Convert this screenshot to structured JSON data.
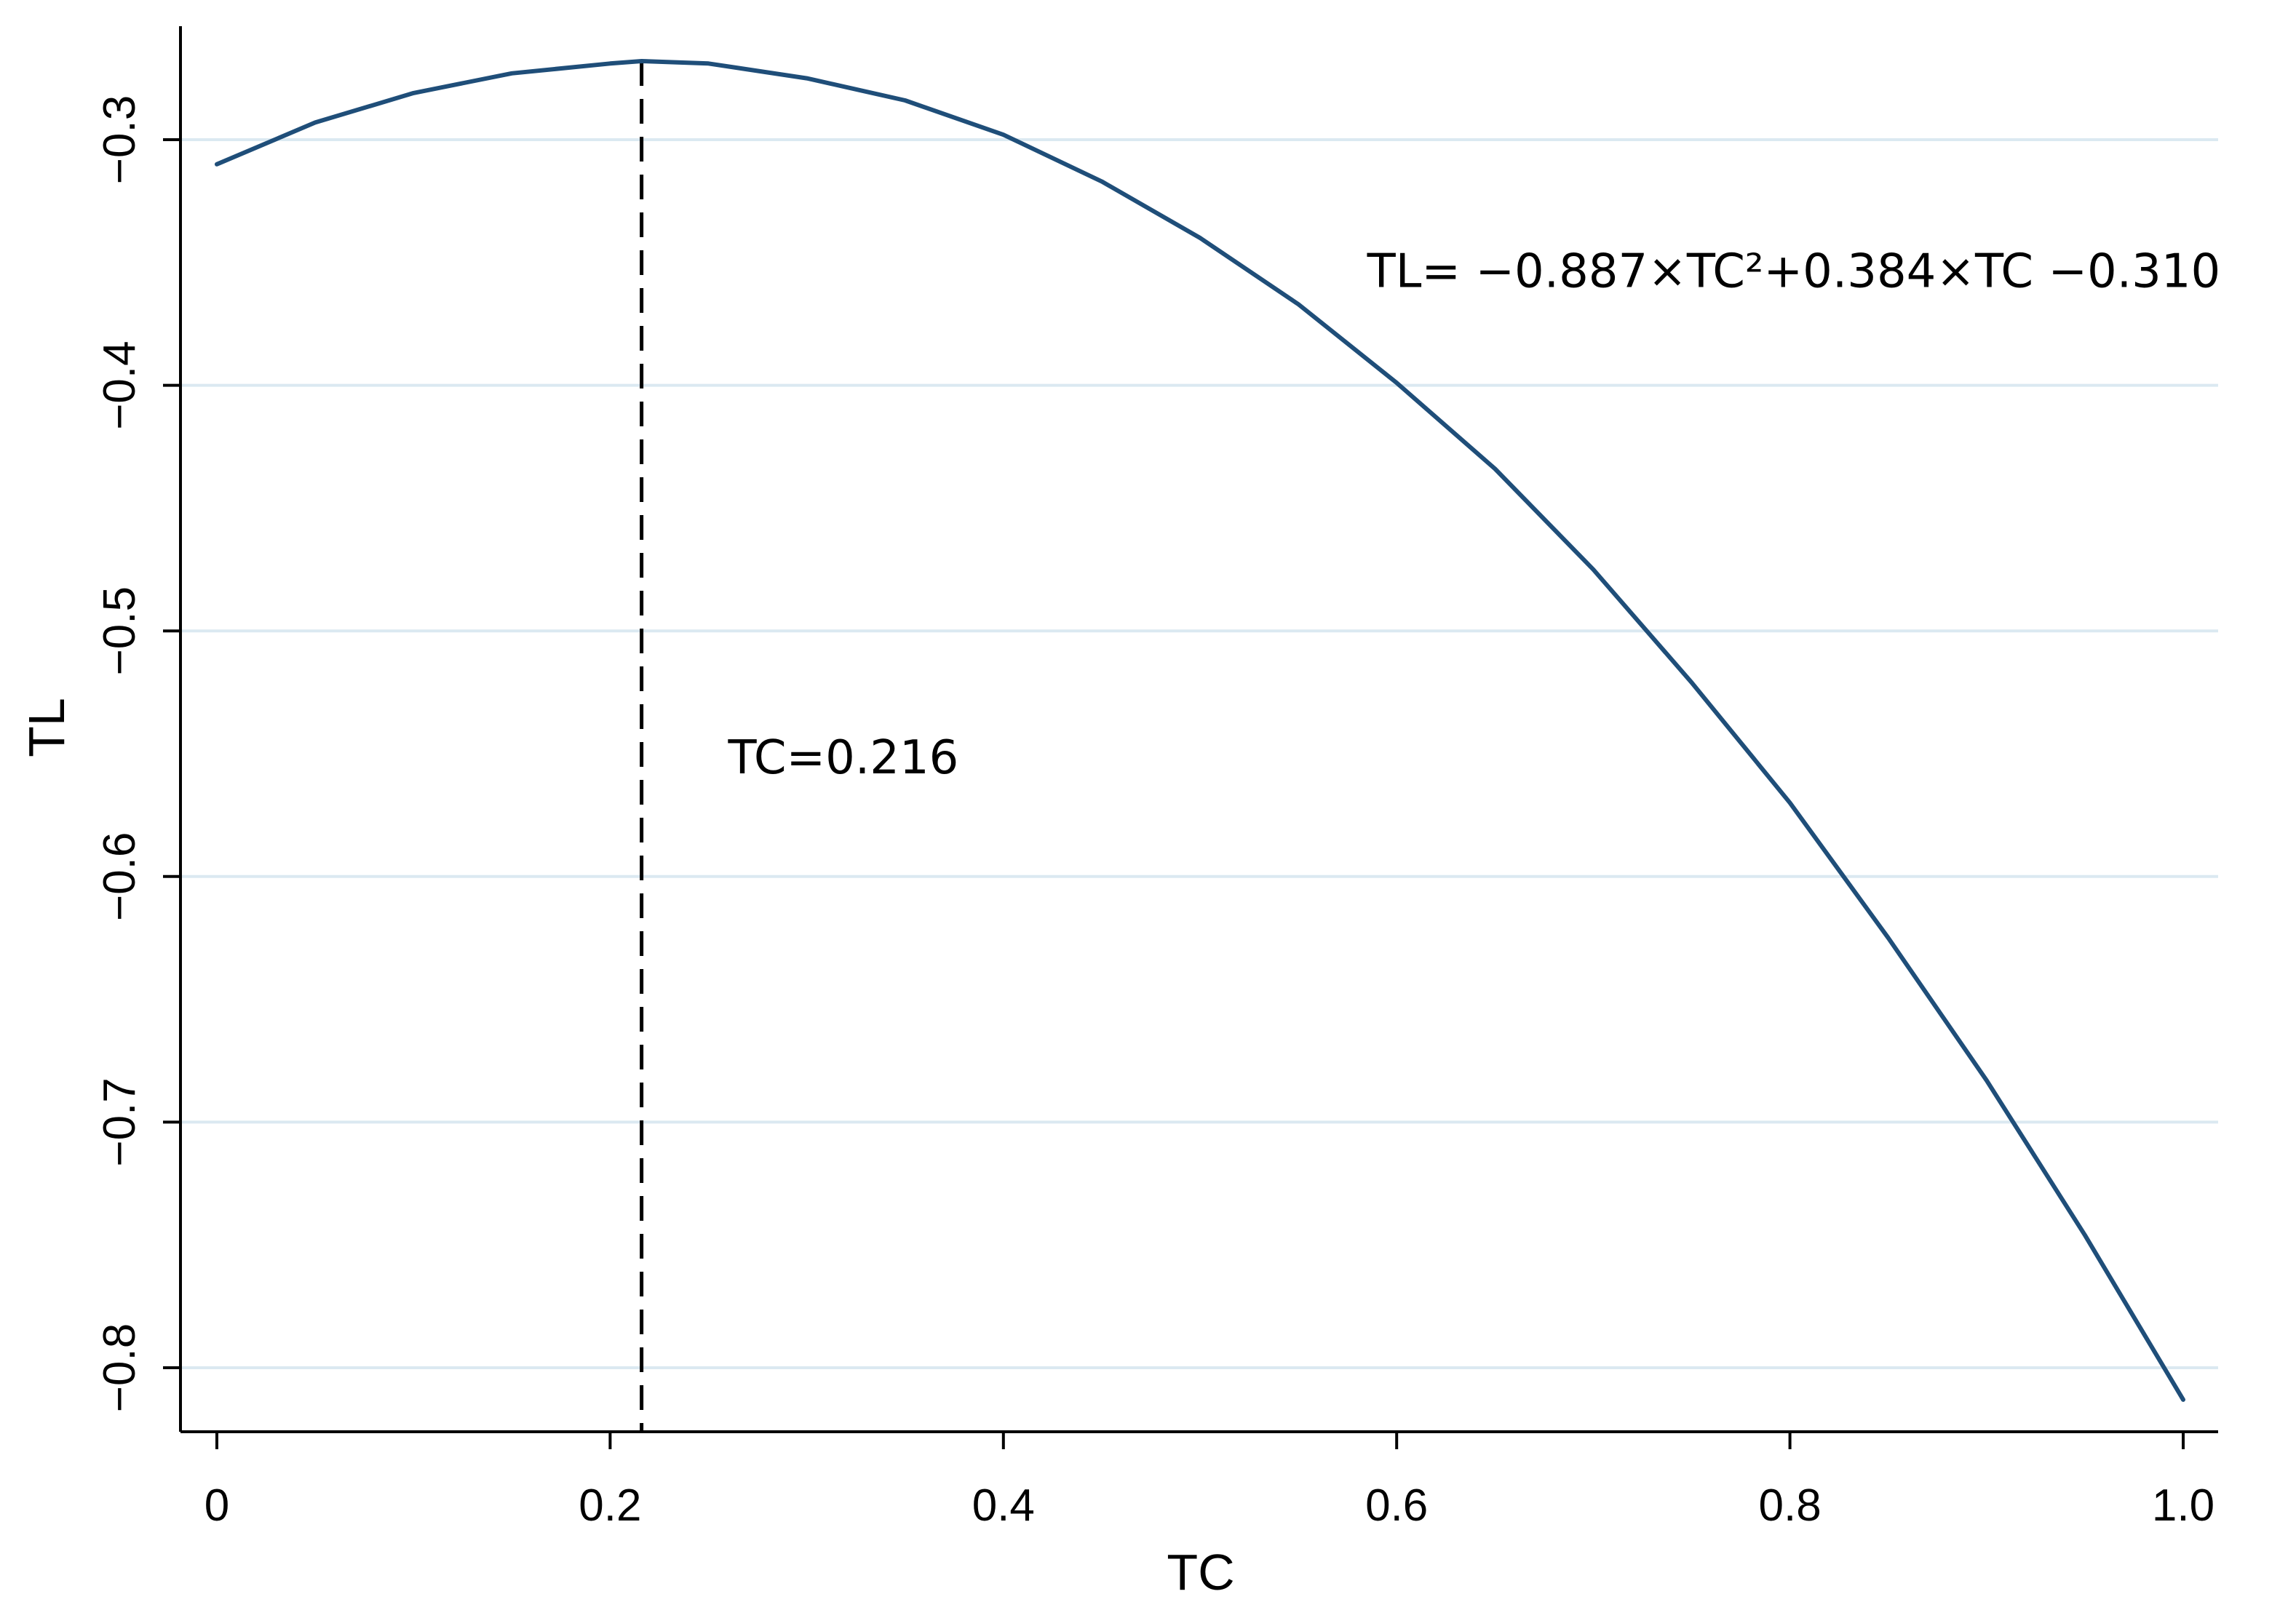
{
  "chart_data": {
    "type": "line",
    "xlabel": "TC",
    "ylabel": "TL",
    "xlim": [
      0,
      1.0
    ],
    "ylim": [
      -0.812,
      -0.268
    ],
    "x_ticks": [
      0,
      0.2,
      0.4,
      0.6,
      0.8,
      1.0
    ],
    "x_tick_labels": [
      "0",
      "0.2",
      "0.4",
      "0.6",
      "0.8",
      "1.0"
    ],
    "y_ticks": [
      -0.3,
      -0.4,
      -0.5,
      -0.6,
      -0.7,
      -0.8
    ],
    "y_tick_labels": [
      "−0.3",
      "−0.4",
      "−0.5",
      "−0.6",
      "−0.7",
      "−0.8"
    ],
    "grid": "horizontal",
    "legend": "none",
    "series": [
      {
        "equation": {
          "a": -0.887,
          "b": 0.384,
          "c": -0.31
        },
        "x": [
          0,
          0.05,
          0.1,
          0.15,
          0.2,
          0.216,
          0.25,
          0.3,
          0.35,
          0.4,
          0.45,
          0.5,
          0.55,
          0.6,
          0.65,
          0.7,
          0.75,
          0.8,
          0.85,
          0.9,
          0.95,
          1.0
        ],
        "y": [
          -0.31,
          -0.293,
          -0.281,
          -0.273,
          -0.269,
          -0.268,
          -0.269,
          -0.275,
          -0.284,
          -0.298,
          -0.317,
          -0.34,
          -0.367,
          -0.399,
          -0.434,
          -0.475,
          -0.521,
          -0.57,
          -0.625,
          -0.683,
          -0.746,
          -0.813
        ],
        "color": "#1f4e79"
      }
    ],
    "vertical_line": {
      "x": 0.216,
      "style": "dashed",
      "color": "#000000"
    },
    "annotations": [
      {
        "text": "TL= −0.887×TC²+0.384×TC −0.310",
        "x": 0.585,
        "y": -0.36
      },
      {
        "text": "TC=0.216",
        "x": 0.26,
        "y": -0.558
      }
    ],
    "grid_color": "#dbe9f1",
    "axis_color": "#000000"
  }
}
